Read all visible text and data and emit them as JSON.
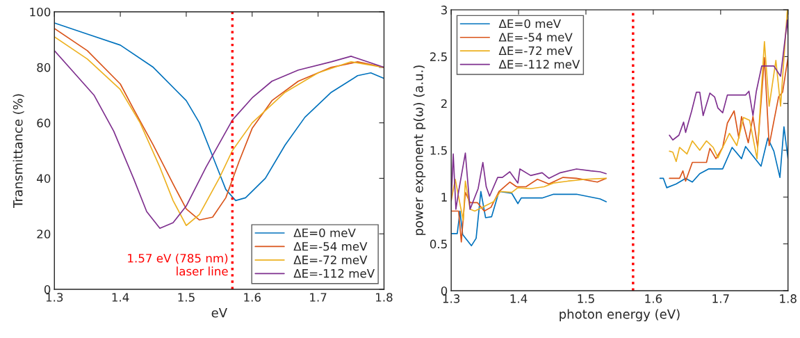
{
  "chart_data": [
    {
      "type": "line",
      "xlabel": "eV",
      "ylabel": "Transmittance (%)",
      "xlim": [
        1.3,
        1.8
      ],
      "xticks": [
        1.3,
        1.4,
        1.5,
        1.6,
        1.7,
        1.8
      ],
      "ylim": [
        0,
        100
      ],
      "yticks": [
        0,
        20,
        40,
        60,
        80,
        100
      ],
      "grid": false,
      "legend": "bottom right",
      "ref_lines": [
        {
          "axis": "x",
          "value": 1.57,
          "label": "1.57 eV (785 nm)\nlaser line",
          "color": "#ff0000",
          "line_style": "dotted"
        }
      ],
      "series": [
        {
          "name": "ΔE=0 meV",
          "color": "#0072bd",
          "x": [
            1.3,
            1.35,
            1.4,
            1.45,
            1.5,
            1.52,
            1.54,
            1.56,
            1.575,
            1.59,
            1.62,
            1.65,
            1.68,
            1.72,
            1.76,
            1.78,
            1.8
          ],
          "values": [
            96,
            92,
            88,
            80,
            68,
            60,
            48,
            36,
            32,
            33,
            40,
            52,
            62,
            71,
            77,
            78,
            76
          ]
        },
        {
          "name": "ΔE=-54 meV",
          "color": "#d95319",
          "x": [
            1.3,
            1.35,
            1.4,
            1.42,
            1.45,
            1.48,
            1.5,
            1.52,
            1.54,
            1.56,
            1.58,
            1.6,
            1.63,
            1.67,
            1.72,
            1.76,
            1.8
          ],
          "values": [
            94,
            86,
            74,
            65,
            52,
            38,
            29,
            25,
            26,
            33,
            46,
            58,
            68,
            75,
            80,
            82,
            80
          ]
        },
        {
          "name": "ΔE=-72 meV",
          "color": "#edb120",
          "x": [
            1.3,
            1.35,
            1.4,
            1.43,
            1.46,
            1.48,
            1.5,
            1.52,
            1.55,
            1.57,
            1.6,
            1.65,
            1.7,
            1.75,
            1.8
          ],
          "values": [
            91,
            83,
            72,
            60,
            44,
            32,
            23,
            27,
            40,
            50,
            60,
            71,
            78,
            82,
            80
          ]
        },
        {
          "name": "ΔE=-112 meV",
          "color": "#7e2f8e",
          "x": [
            1.3,
            1.33,
            1.36,
            1.39,
            1.42,
            1.44,
            1.46,
            1.48,
            1.5,
            1.53,
            1.57,
            1.6,
            1.63,
            1.67,
            1.72,
            1.75,
            1.8
          ],
          "values": [
            86,
            78,
            70,
            57,
            40,
            28,
            22,
            24,
            30,
            44,
            61,
            69,
            75,
            79,
            82,
            84,
            80
          ]
        }
      ]
    },
    {
      "type": "line",
      "xlabel": "photon energy (eV)",
      "ylabel": "power exponent p(ω) (a.u.)",
      "xlim": [
        1.3,
        1.8
      ],
      "xticks": [
        1.3,
        1.4,
        1.5,
        1.6,
        1.7,
        1.8
      ],
      "ylim": [
        0,
        3
      ],
      "yticks": [
        0,
        0.5,
        1,
        1.5,
        2,
        2.5,
        3
      ],
      "grid": false,
      "legend": "top left",
      "ref_lines": [
        {
          "axis": "x",
          "value": 1.57,
          "color": "#ff0000",
          "line_style": "dotted"
        }
      ],
      "series": [
        {
          "name": "ΔE=0 meV",
          "color": "#0072bd",
          "x": [
            1.3,
            1.309,
            1.313,
            1.317,
            1.33,
            1.337,
            1.344,
            1.351,
            1.36,
            1.371,
            1.39,
            1.399,
            1.404,
            1.435,
            1.452,
            1.486,
            1.521,
            1.53,
            1.57,
            1.61,
            1.615,
            1.62,
            1.634,
            1.648,
            1.658,
            1.669,
            1.682,
            1.703,
            1.717,
            1.731,
            1.737,
            1.749,
            1.76,
            1.77,
            1.779,
            1.788,
            1.794,
            1.8
          ],
          "values": [
            0.61,
            0.61,
            0.85,
            0.6,
            0.48,
            0.56,
            1.06,
            0.78,
            0.79,
            1.06,
            1.04,
            0.93,
            0.99,
            0.99,
            1.03,
            1.03,
            0.98,
            0.95,
            null,
            1.2,
            1.2,
            1.1,
            1.14,
            1.2,
            1.16,
            1.25,
            1.3,
            1.3,
            1.53,
            1.41,
            1.54,
            1.43,
            1.33,
            1.63,
            1.49,
            1.21,
            1.75,
            1.41
          ]
        },
        {
          "name": "ΔE=-54 meV",
          "color": "#d95319",
          "x": [
            1.3,
            1.311,
            1.315,
            1.321,
            1.328,
            1.339,
            1.349,
            1.359,
            1.371,
            1.387,
            1.397,
            1.411,
            1.428,
            1.445,
            1.466,
            1.486,
            1.517,
            1.53,
            1.57,
            1.624,
            1.639,
            1.644,
            1.648,
            1.658,
            1.679,
            1.684,
            1.693,
            1.703,
            1.71,
            1.72,
            1.727,
            1.731,
            1.741,
            1.748,
            1.755,
            1.765,
            1.772,
            1.786,
            1.792,
            1.8
          ],
          "values": [
            0.85,
            0.85,
            0.52,
            1.05,
            0.94,
            0.94,
            0.85,
            0.89,
            1.06,
            1.16,
            1.11,
            1.11,
            1.19,
            1.14,
            1.21,
            1.2,
            1.16,
            1.2,
            null,
            1.2,
            1.2,
            1.28,
            1.17,
            1.37,
            1.37,
            1.52,
            1.41,
            1.53,
            1.79,
            1.92,
            1.63,
            1.86,
            1.58,
            1.86,
            1.53,
            2.49,
            1.55,
            2.07,
            2.12,
            2.49
          ]
        },
        {
          "name": "ΔE=-72 meV",
          "color": "#edb120",
          "x": [
            1.3,
            1.306,
            1.314,
            1.318,
            1.321,
            1.328,
            1.335,
            1.349,
            1.363,
            1.373,
            1.39,
            1.399,
            1.418,
            1.438,
            1.452,
            1.473,
            1.5,
            1.53,
            1.57,
            1.624,
            1.629,
            1.634,
            1.639,
            1.65,
            1.658,
            1.669,
            1.679,
            1.689,
            1.696,
            1.703,
            1.713,
            1.724,
            1.734,
            1.743,
            1.754,
            1.765,
            1.772,
            1.782,
            1.789,
            1.799
          ],
          "values": [
            0.96,
            1.19,
            0.89,
            0.75,
            1.17,
            0.87,
            0.85,
            0.9,
            0.95,
            1.06,
            1.05,
            1.1,
            1.09,
            1.11,
            1.15,
            1.17,
            1.19,
            1.2,
            null,
            1.49,
            1.48,
            1.38,
            1.53,
            1.46,
            1.6,
            1.5,
            1.6,
            1.53,
            1.42,
            1.53,
            1.68,
            1.55,
            1.85,
            1.82,
            1.41,
            2.66,
            1.97,
            2.46,
            1.97,
            3.0
          ]
        },
        {
          "name": "ΔE=-112 meV",
          "color": "#7e2f8e",
          "x": [
            1.3,
            1.303,
            1.307,
            1.311,
            1.321,
            1.328,
            1.34,
            1.347,
            1.352,
            1.357,
            1.369,
            1.376,
            1.387,
            1.399,
            1.402,
            1.418,
            1.435,
            1.445,
            1.462,
            1.486,
            1.507,
            1.521,
            1.53,
            1.57,
            1.624,
            1.629,
            1.638,
            1.645,
            1.648,
            1.657,
            1.664,
            1.669,
            1.674,
            1.684,
            1.691,
            1.696,
            1.703,
            1.71,
            1.737,
            1.742,
            1.748,
            1.753,
            1.761,
            1.779,
            1.789,
            1.799,
            1.8
          ],
          "values": [
            0.96,
            1.46,
            0.87,
            1.06,
            1.47,
            0.87,
            1.09,
            1.37,
            1.11,
            1.01,
            1.21,
            1.21,
            1.27,
            1.15,
            1.3,
            1.23,
            1.26,
            1.2,
            1.26,
            1.3,
            1.28,
            1.27,
            1.25,
            null,
            1.66,
            1.61,
            1.66,
            1.8,
            1.69,
            1.92,
            2.12,
            2.12,
            1.87,
            2.11,
            2.07,
            1.95,
            1.9,
            2.09,
            2.09,
            2.13,
            1.87,
            2.13,
            2.4,
            2.4,
            2.29,
            2.89,
            2.73
          ]
        }
      ]
    }
  ]
}
